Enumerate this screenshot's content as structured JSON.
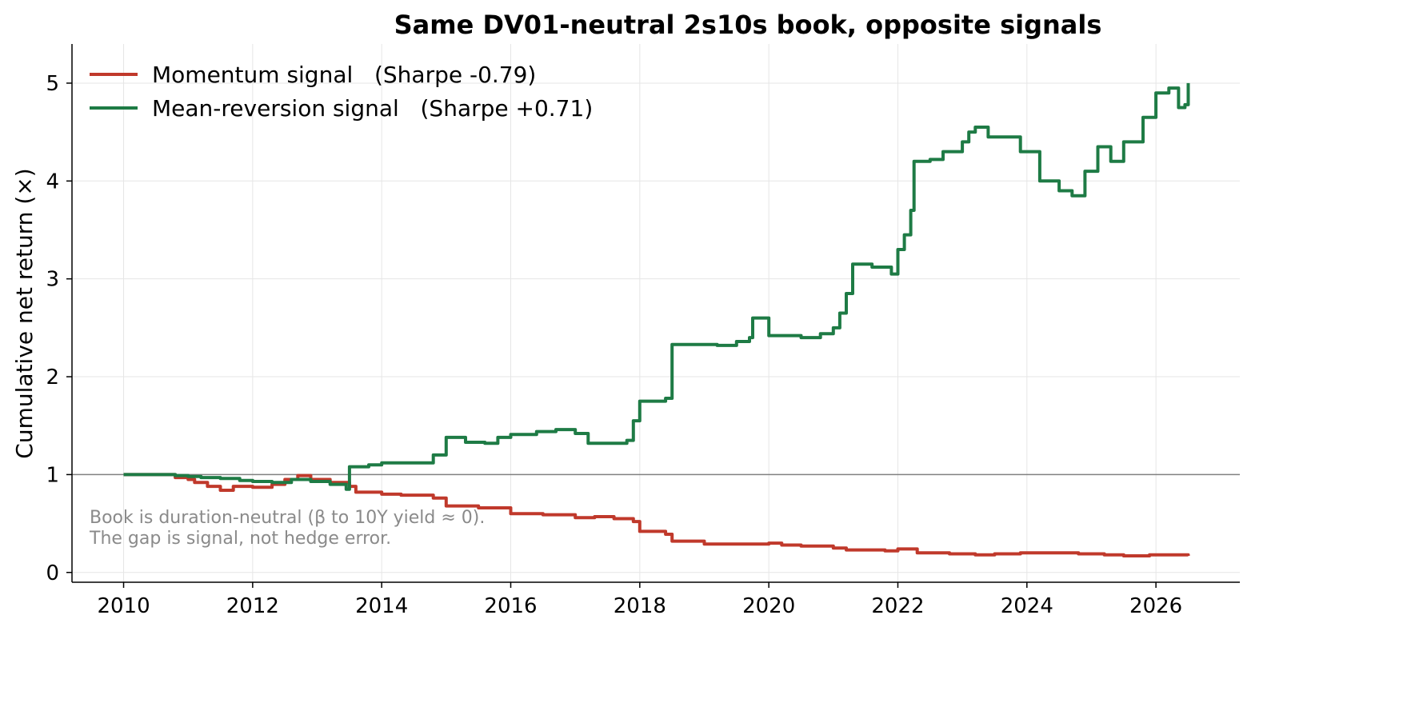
{
  "chart_data": {
    "type": "line",
    "title": "Same DV01-neutral 2s10s book, opposite signals",
    "xlabel": "",
    "ylabel": "Cumulative net return (×)",
    "xlim": [
      2009.2,
      2027.3
    ],
    "ylim": [
      -0.1,
      5.4
    ],
    "xticks": [
      2010,
      2012,
      2014,
      2016,
      2018,
      2020,
      2022,
      2024,
      2026
    ],
    "yticks": [
      0,
      1,
      2,
      3,
      4,
      5
    ],
    "grid": true,
    "legend_position": "top-left",
    "reference_line": {
      "y": 1,
      "color": "#808080"
    },
    "annotation": [
      "Book is duration-neutral (β to 10Y yield ≈ 0).",
      "The gap is signal, not hedge error."
    ],
    "series": [
      {
        "name": "Momentum signal   (Sharpe -0.79)",
        "color": "#c0392b",
        "x": [
          2010.0,
          2010.6,
          2010.8,
          2011.0,
          2011.1,
          2011.3,
          2011.5,
          2011.7,
          2012.0,
          2012.3,
          2012.5,
          2012.7,
          2012.9,
          2013.2,
          2013.5,
          2013.6,
          2014.0,
          2014.3,
          2014.6,
          2014.8,
          2015.0,
          2015.2,
          2015.5,
          2015.8,
          2016.0,
          2016.5,
          2017.0,
          2017.3,
          2017.6,
          2017.9,
          2018.0,
          2018.4,
          2018.5,
          2019.0,
          2019.5,
          2020.0,
          2020.2,
          2020.5,
          2021.0,
          2021.2,
          2021.5,
          2021.8,
          2022.0,
          2022.3,
          2022.8,
          2023.2,
          2023.5,
          2023.9,
          2024.3,
          2024.8,
          2025.2,
          2025.5,
          2025.9,
          2026.2,
          2026.5
        ],
        "y": [
          1.0,
          1.0,
          0.97,
          0.95,
          0.92,
          0.88,
          0.84,
          0.88,
          0.87,
          0.9,
          0.95,
          0.99,
          0.95,
          0.92,
          0.88,
          0.82,
          0.8,
          0.79,
          0.79,
          0.76,
          0.68,
          0.68,
          0.66,
          0.66,
          0.6,
          0.59,
          0.56,
          0.57,
          0.55,
          0.52,
          0.42,
          0.39,
          0.32,
          0.29,
          0.29,
          0.3,
          0.28,
          0.27,
          0.25,
          0.23,
          0.23,
          0.22,
          0.24,
          0.2,
          0.19,
          0.18,
          0.19,
          0.2,
          0.2,
          0.19,
          0.18,
          0.17,
          0.18,
          0.18,
          0.17
        ]
      },
      {
        "name": "Mean-reversion signal   (Sharpe +0.71)",
        "color": "#1e7b45",
        "x": [
          2010.0,
          2010.5,
          2010.8,
          2011.0,
          2011.2,
          2011.5,
          2011.8,
          2012.0,
          2012.3,
          2012.6,
          2012.9,
          2013.2,
          2013.45,
          2013.5,
          2013.8,
          2014.0,
          2014.3,
          2014.6,
          2014.8,
          2015.0,
          2015.3,
          2015.6,
          2015.8,
          2016.0,
          2016.4,
          2016.7,
          2017.0,
          2017.2,
          2017.5,
          2017.8,
          2017.9,
          2018.0,
          2018.4,
          2018.5,
          2018.9,
          2019.2,
          2019.5,
          2019.7,
          2019.75,
          2020.0,
          2020.5,
          2020.8,
          2021.0,
          2021.1,
          2021.2,
          2021.3,
          2021.6,
          2021.9,
          2022.0,
          2022.1,
          2022.2,
          2022.25,
          2022.5,
          2022.7,
          2023.0,
          2023.1,
          2023.2,
          2023.4,
          2023.6,
          2023.9,
          2024.2,
          2024.5,
          2024.7,
          2024.9,
          2025.1,
          2025.3,
          2025.5,
          2025.8,
          2026.0,
          2026.2,
          2026.35,
          2026.45,
          2026.5
        ],
        "y": [
          1.0,
          1.0,
          0.99,
          0.98,
          0.97,
          0.96,
          0.94,
          0.93,
          0.92,
          0.95,
          0.93,
          0.9,
          0.85,
          1.08,
          1.1,
          1.12,
          1.12,
          1.12,
          1.2,
          1.38,
          1.33,
          1.32,
          1.38,
          1.41,
          1.44,
          1.46,
          1.42,
          1.32,
          1.32,
          1.35,
          1.55,
          1.75,
          1.78,
          2.33,
          2.33,
          2.32,
          2.36,
          2.4,
          2.6,
          2.42,
          2.4,
          2.44,
          2.5,
          2.65,
          2.85,
          3.15,
          3.12,
          3.05,
          3.3,
          3.45,
          3.7,
          4.2,
          4.22,
          4.3,
          4.4,
          4.5,
          4.55,
          4.45,
          4.45,
          4.3,
          4.0,
          3.9,
          3.85,
          4.1,
          4.35,
          4.2,
          4.4,
          4.65,
          4.9,
          4.95,
          4.75,
          4.78,
          5.0
        ]
      }
    ]
  }
}
